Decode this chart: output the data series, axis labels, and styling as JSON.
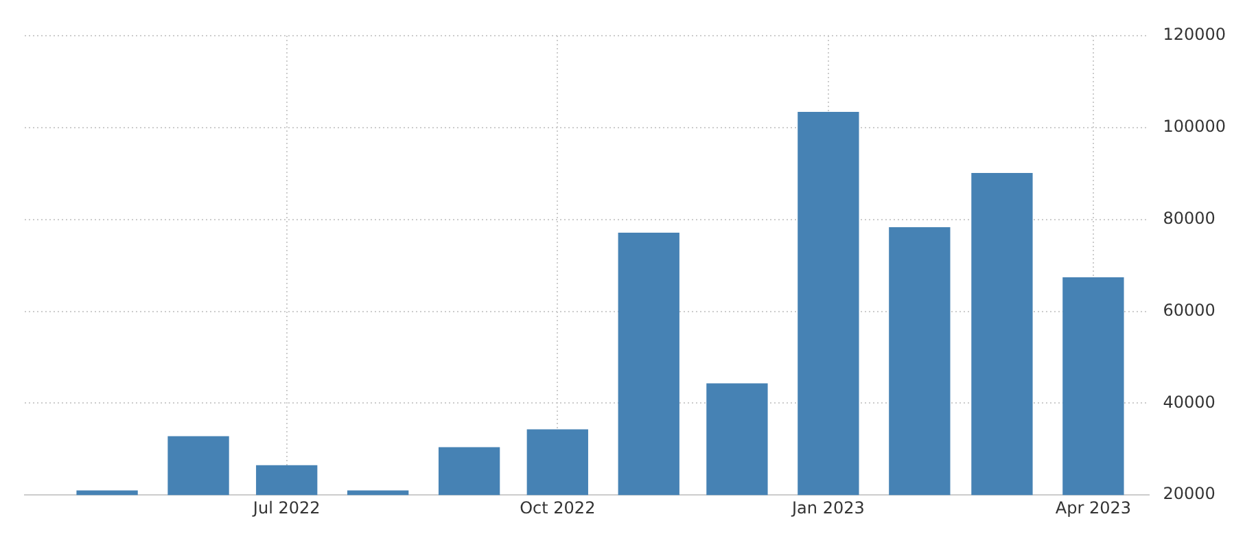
{
  "chart_data": {
    "type": "bar",
    "x": [
      "2022-05",
      "2022-06",
      "2022-07",
      "2022-08",
      "2022-09",
      "2022-10",
      "2022-11",
      "2022-12",
      "2023-01",
      "2023-02",
      "2023-03",
      "2023-04"
    ],
    "values": [
      20900,
      32700,
      26400,
      20900,
      30300,
      34200,
      77000,
      44200,
      103300,
      78200,
      90000,
      67300
    ],
    "color": "#4682b4",
    "xlim": [
      "2022-04-03",
      "2023-04-20"
    ],
    "xticks": [
      {
        "value": "2022-07",
        "label": "Jul 2022"
      },
      {
        "value": "2022-10",
        "label": "Oct 2022"
      },
      {
        "value": "2023-01",
        "label": "Jan 2023"
      },
      {
        "value": "2023-04",
        "label": "Apr 2023"
      }
    ],
    "ylim": [
      20000,
      120000
    ],
    "yticks": [
      20000,
      40000,
      60000,
      80000,
      100000,
      120000
    ],
    "grid": true,
    "legend": false
  }
}
